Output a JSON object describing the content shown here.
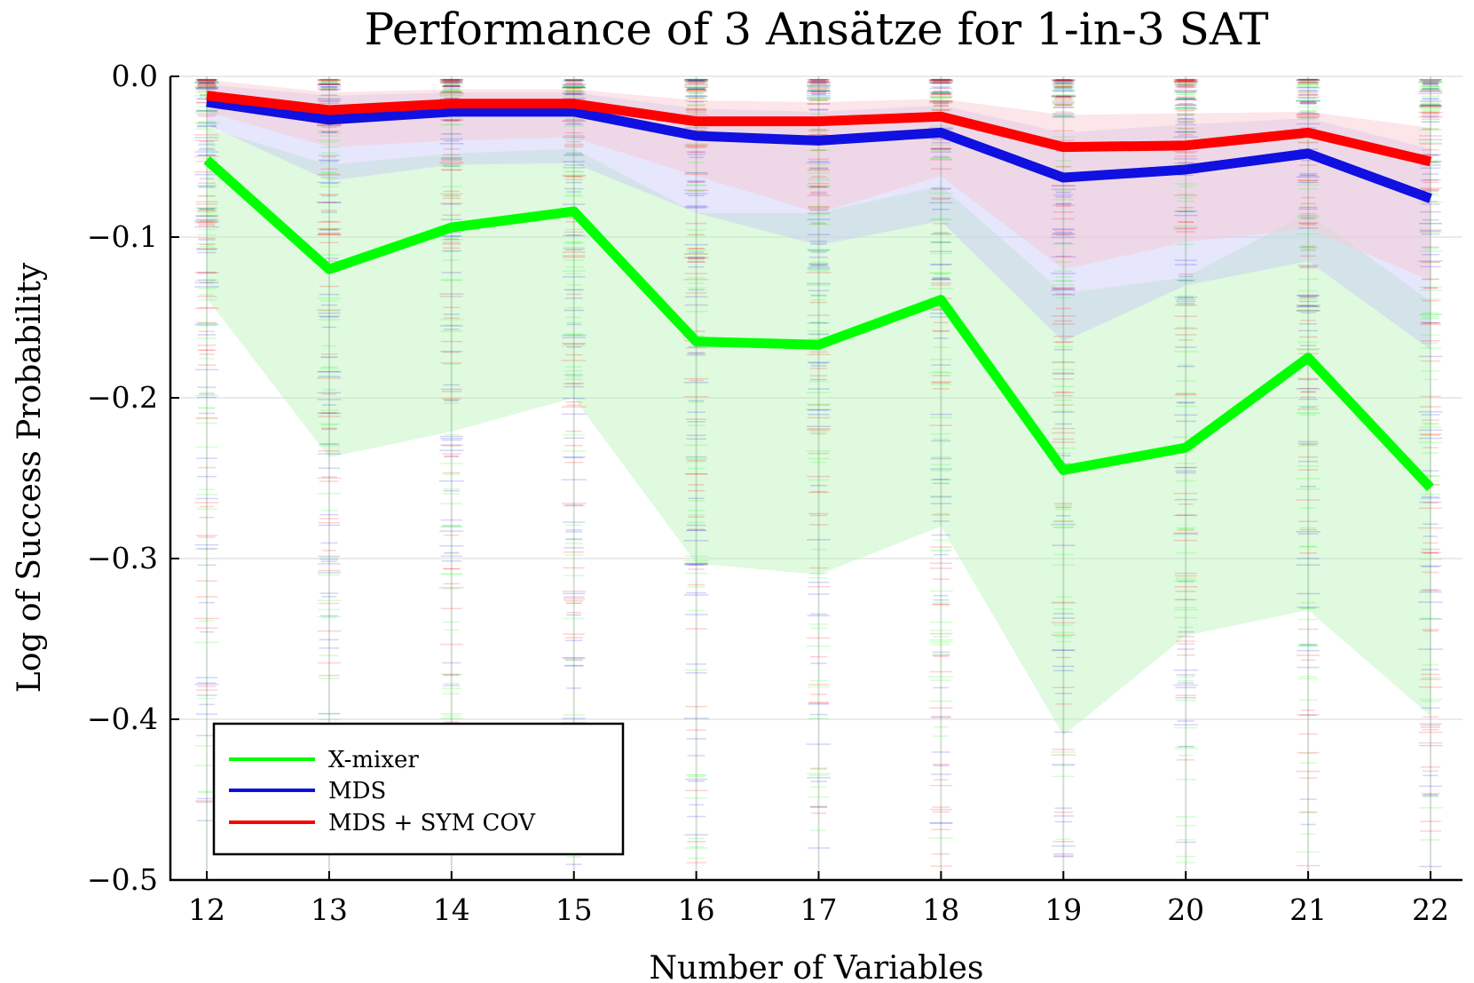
{
  "chart_data": {
    "type": "line",
    "title": "Performance of 3 Ansätze for 1-in-3 SAT",
    "xlabel": "Number of Variables",
    "ylabel": "Log of Success Probability",
    "x": [
      12,
      13,
      14,
      15,
      16,
      17,
      18,
      19,
      20,
      21,
      22
    ],
    "xticks": [
      "12",
      "13",
      "14",
      "15",
      "16",
      "17",
      "18",
      "19",
      "20",
      "21",
      "22"
    ],
    "yticks": [
      "0.0",
      "−0.1",
      "−0.2",
      "−0.3",
      "−0.4",
      "−0.5"
    ],
    "ytick_values": [
      0.0,
      -0.1,
      -0.2,
      -0.3,
      -0.4,
      -0.5
    ],
    "ylim": [
      -0.5,
      0.0
    ],
    "xlim": [
      11.7,
      22.3
    ],
    "grid": true,
    "legend_position": "bottom-left",
    "series": [
      {
        "name": "X-mixer",
        "color": "#00ff00",
        "band_color": "#b8f5b8",
        "values": [
          -0.052,
          -0.12,
          -0.094,
          -0.084,
          -0.165,
          -0.167,
          -0.139,
          -0.245,
          -0.231,
          -0.175,
          -0.256
        ],
        "band_upper": [
          -0.032,
          -0.055,
          -0.048,
          -0.045,
          -0.085,
          -0.085,
          -0.068,
          -0.135,
          -0.125,
          -0.085,
          -0.14
        ],
        "band_lower": [
          -0.138,
          -0.237,
          -0.221,
          -0.2,
          -0.303,
          -0.31,
          -0.28,
          -0.41,
          -0.348,
          -0.332,
          -0.398
        ]
      },
      {
        "name": "MDS",
        "color": "#1010e0",
        "band_color": "#c8c8f8",
        "values": [
          -0.016,
          -0.027,
          -0.022,
          -0.022,
          -0.037,
          -0.04,
          -0.035,
          -0.063,
          -0.058,
          -0.048,
          -0.076
        ],
        "band_upper": [
          -0.005,
          -0.012,
          -0.01,
          -0.01,
          -0.02,
          -0.022,
          -0.018,
          -0.035,
          -0.03,
          -0.026,
          -0.045
        ],
        "band_lower": [
          -0.03,
          -0.065,
          -0.055,
          -0.054,
          -0.085,
          -0.105,
          -0.09,
          -0.165,
          -0.13,
          -0.115,
          -0.17
        ]
      },
      {
        "name": "MDS + SYM COV",
        "color": "#ff0000",
        "band_color": "#f8c8d0",
        "values": [
          -0.012,
          -0.021,
          -0.017,
          -0.017,
          -0.028,
          -0.028,
          -0.025,
          -0.044,
          -0.043,
          -0.035,
          -0.053
        ],
        "band_upper": [
          -0.002,
          -0.01,
          -0.008,
          -0.008,
          -0.015,
          -0.016,
          -0.014,
          -0.024,
          -0.023,
          -0.022,
          -0.032
        ],
        "band_lower": [
          -0.022,
          -0.044,
          -0.04,
          -0.038,
          -0.062,
          -0.085,
          -0.062,
          -0.12,
          -0.103,
          -0.095,
          -0.127
        ]
      }
    ]
  }
}
